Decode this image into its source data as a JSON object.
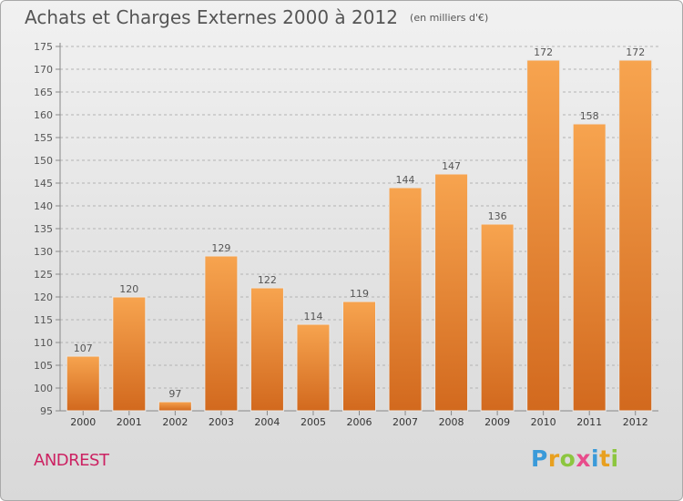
{
  "header": {
    "title": "Achats et Charges Externes 2000 à 2012",
    "unit": "(en milliers d'€)"
  },
  "footer": {
    "commune": "ANDREST",
    "logo_text": "Proxiti",
    "logo_letters": [
      {
        "char": "P",
        "color": "#3a9ad9"
      },
      {
        "char": "r",
        "color": "#e8a020"
      },
      {
        "char": "o",
        "color": "#8cc63f"
      },
      {
        "char": "x",
        "color": "#e84c8b"
      },
      {
        "char": "i",
        "color": "#3a9ad9"
      },
      {
        "char": "t",
        "color": "#e8a020"
      },
      {
        "char": "i",
        "color": "#8cc63f"
      }
    ]
  },
  "colors": {
    "bar_top": "#f7a44f",
    "bar_bottom": "#d2691e",
    "text": "#555555",
    "accent": "#cc2262"
  },
  "chart_data": {
    "type": "bar",
    "title": "Achats et Charges Externes 2000 à 2012",
    "subtitle": "(en milliers d'€)",
    "categories": [
      "2000",
      "2001",
      "2002",
      "2003",
      "2004",
      "2005",
      "2006",
      "2007",
      "2008",
      "2009",
      "2010",
      "2011",
      "2012"
    ],
    "values": [
      107,
      120,
      97,
      129,
      122,
      114,
      119,
      144,
      147,
      136,
      172,
      158,
      172
    ],
    "ylim": [
      95,
      175
    ],
    "yticks": [
      95,
      100,
      105,
      110,
      115,
      120,
      125,
      130,
      135,
      140,
      145,
      150,
      155,
      160,
      165,
      170,
      175
    ],
    "grid": true,
    "grid_style": "dashed"
  }
}
